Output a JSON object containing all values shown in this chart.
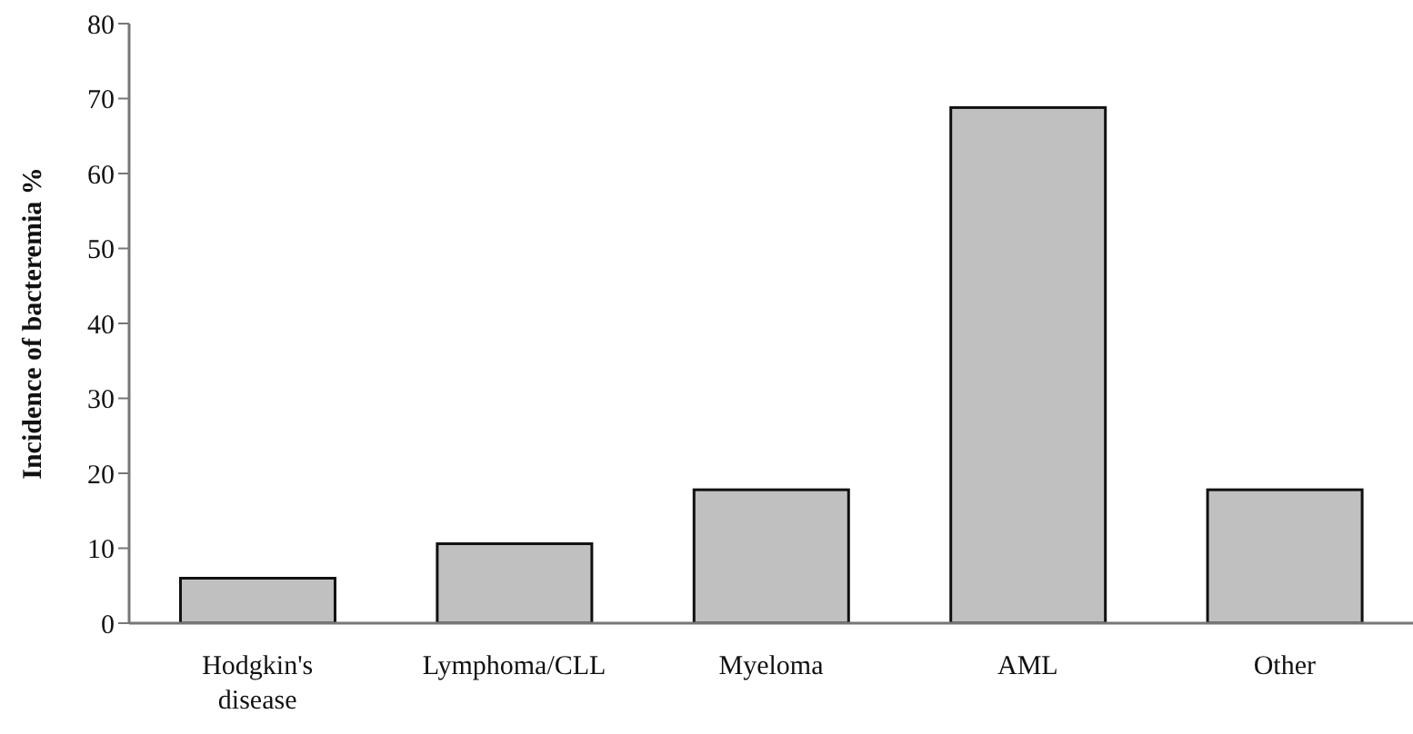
{
  "chart_data": {
    "type": "bar",
    "ylabel": "Incidence of bacteremia %",
    "categories": [
      "Hodgkin's disease",
      "Lymphoma/CLL",
      "Myeloma",
      "AML",
      "Other"
    ],
    "values": [
      6,
      10.6,
      17.8,
      68.8,
      17.8
    ],
    "color": "#c0c0c0",
    "ylim": [
      0,
      80
    ],
    "yticks": [
      0,
      10,
      20,
      30,
      40,
      50,
      60,
      70,
      80
    ],
    "grid": false
  }
}
